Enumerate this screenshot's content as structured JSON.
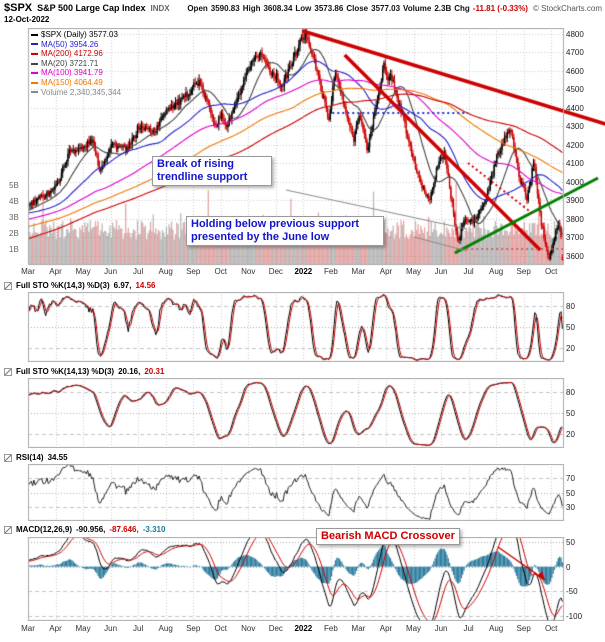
{
  "header": {
    "symbol": "$SPX",
    "name": "S&P 500 Large Cap Index",
    "exchange": "INDX",
    "copyright": "© StockCharts.com",
    "date": "12-Oct-2022",
    "quote_items": [
      {
        "label": "Open",
        "value": "3590.83",
        "color": "#111111"
      },
      {
        "label": "High",
        "value": "3608.34",
        "color": "#111111"
      },
      {
        "label": "Low",
        "value": "3573.86",
        "color": "#111111"
      },
      {
        "label": "Close",
        "value": "3577.03",
        "color": "#111111"
      },
      {
        "label": "Volume",
        "value": "2.3B",
        "color": "#111111"
      },
      {
        "label": "Chg",
        "value": "-11.81 (-0.33%)",
        "color": "#cc0000"
      }
    ]
  },
  "legend": {
    "items": [
      {
        "text": "$SPX (Daily) 3577.03",
        "color": "#000000",
        "icon": "candlestick-icon"
      },
      {
        "text": "MA(50) 3954.26",
        "color": "#2222cc",
        "icon": "line-icon"
      },
      {
        "text": "MA(200) 4172.96",
        "color": "#cc0000",
        "icon": "line-icon"
      },
      {
        "text": "MA(20) 3721.71",
        "color": "#444444",
        "icon": "line-icon"
      },
      {
        "text": "MA(100) 3941.79",
        "color": "#dd00cc",
        "icon": "line-icon"
      },
      {
        "text": "MA(150) 4064.49",
        "color": "#ee7700",
        "icon": "line-icon"
      },
      {
        "text": "Volume 2,340,345,344",
        "color": "#888888",
        "icon": "volume-icon"
      }
    ]
  },
  "annotations": {
    "trendline_break": "Break of rising trendline support",
    "june_low": "Holding below previous support presented by the June low",
    "macd_cross": "Bearish MACD Crossover"
  },
  "chart_data": {
    "type": "candlestick",
    "title": "$SPX daily candlesticks with MA(20/50/100/150/200), volume, Full Stochastics, RSI and MACD",
    "x_months": [
      "Mar",
      "Apr",
      "May",
      "Jun",
      "Jul",
      "Aug",
      "Sep",
      "Oct",
      "Nov",
      "Dec",
      "2022",
      "Feb",
      "Mar",
      "Apr",
      "May",
      "Jun",
      "Jul",
      "Aug",
      "Sep",
      "Oct"
    ],
    "bars_per_month": 21,
    "visible_bars": 408,
    "warmup_bars": 200,
    "price_axis": {
      "min": 3550,
      "max": 4830,
      "ticks": [
        4800,
        4700,
        4600,
        4500,
        4400,
        4300,
        4200,
        4100,
        4000,
        3900,
        3800,
        3700,
        3600
      ]
    },
    "volume_axis": {
      "ticks": [
        "5B",
        "4B",
        "3B",
        "2B",
        "1B"
      ],
      "billions_per_16px": 1
    },
    "price_keypoints": [
      [
        -10,
        3370
      ],
      [
        -8,
        3520
      ],
      [
        -6,
        3690
      ],
      [
        -4,
        3740
      ],
      [
        -2,
        3840
      ],
      [
        -1,
        3810
      ],
      [
        0,
        3870
      ],
      [
        0.5,
        3920
      ],
      [
        1,
        3973
      ],
      [
        1.5,
        4170
      ],
      [
        2,
        4181
      ],
      [
        2.3,
        4230
      ],
      [
        2.6,
        4060
      ],
      [
        3,
        4204
      ],
      [
        3.6,
        4170
      ],
      [
        4,
        4297
      ],
      [
        4.6,
        4270
      ],
      [
        5,
        4395
      ],
      [
        5.6,
        4440
      ],
      [
        6,
        4523
      ],
      [
        6.2,
        4537
      ],
      [
        6.8,
        4307
      ],
      [
        7,
        4357
      ],
      [
        7.2,
        4300
      ],
      [
        8,
        4605
      ],
      [
        8.4,
        4700
      ],
      [
        8.8,
        4594
      ],
      [
        9,
        4567
      ],
      [
        9.2,
        4513
      ],
      [
        9.9,
        4766
      ],
      [
        10.1,
        4797
      ],
      [
        10.5,
        4580
      ],
      [
        10.9,
        4330
      ],
      [
        11.05,
        4516
      ],
      [
        11.15,
        4590
      ],
      [
        11.5,
        4380
      ],
      [
        11.8,
        4226
      ],
      [
        12,
        4374
      ],
      [
        12.3,
        4170
      ],
      [
        12.9,
        4631
      ],
      [
        13.05,
        4530
      ],
      [
        13.15,
        4582
      ],
      [
        13.5,
        4400
      ],
      [
        13.95,
        4131
      ],
      [
        14.2,
        4000
      ],
      [
        14.55,
        3900
      ],
      [
        14.8,
        4058
      ],
      [
        15.0,
        4132
      ],
      [
        15.1,
        4160
      ],
      [
        15.35,
        3900
      ],
      [
        15.6,
        3666
      ],
      [
        15.8,
        3795
      ],
      [
        16.0,
        3785
      ],
      [
        16.2,
        3790
      ],
      [
        16.6,
        3900
      ],
      [
        17.0,
        4130
      ],
      [
        17.5,
        4305
      ],
      [
        17.8,
        4030
      ],
      [
        18.0,
        3955
      ],
      [
        18.1,
        3908
      ],
      [
        18.35,
        4110
      ],
      [
        18.6,
        3790
      ],
      [
        18.9,
        3585
      ],
      [
        19.05,
        3678
      ],
      [
        19.25,
        3790
      ],
      [
        19.43,
        3577
      ]
    ],
    "last_bar": {
      "open": 3590.83,
      "high": 3608.34,
      "low": 3573.86,
      "close": 3577.03,
      "volume_billions": 2.3
    },
    "moving_averages": [
      {
        "period": 20,
        "color": "#444444"
      },
      {
        "period": 50,
        "color": "#2222cc"
      },
      {
        "period": 100,
        "color": "#dd00cc"
      },
      {
        "period": 150,
        "color": "#ee7700"
      },
      {
        "period": 200,
        "color": "#cc0000"
      }
    ],
    "candle_up_color": "#000000",
    "candle_down_color": "#cc0000",
    "volume_up_color": "rgba(130,130,130,0.55)",
    "volume_down_color": "rgba(205,95,95,0.55)",
    "overlays": [
      {
        "name": "upper-falling-trendline",
        "color": "#cc0000",
        "width": 3.5,
        "from": [
          9.95,
          4815
        ],
        "to": [
          21.0,
          4310
        ]
      },
      {
        "name": "steep-falling-trendline",
        "color": "#cc0000",
        "width": 3.5,
        "from": [
          11.5,
          4684
        ],
        "to": [
          18.6,
          3631
        ]
      },
      {
        "name": "rising-support-trendline",
        "color": "#008000",
        "width": 3,
        "from": [
          15.5,
          3615
        ],
        "to": [
          20.7,
          4020
        ]
      },
      {
        "name": "support-level-dotted",
        "color": "#2233cc",
        "width": 2,
        "dash": [
          2,
          3
        ],
        "from": [
          11.05,
          4371
        ],
        "to": [
          15.98,
          4371
        ]
      },
      {
        "name": "falling-resistance-dotted",
        "color": "#cc0000",
        "width": 2,
        "dash": [
          2,
          3
        ],
        "from": [
          15.98,
          4101
        ],
        "to": [
          18.3,
          3831
        ]
      },
      {
        "name": "june-low-dotted",
        "color": "#cc4444",
        "width": 1.5,
        "dash": [
          2,
          3
        ],
        "from": [
          15.55,
          3636
        ],
        "to": [
          19.43,
          3636
        ]
      }
    ],
    "panels": [
      {
        "id": "sto1",
        "label": "Full STO %K(14,3) %D(3)",
        "values": [
          {
            "text": "6.97,",
            "color": "#000000"
          },
          {
            "text": "14.56",
            "color": "#cc0000"
          }
        ],
        "ticks": [
          80,
          50,
          20
        ],
        "range": [
          0,
          100
        ]
      },
      {
        "id": "sto2",
        "label": "Full STO %K(14,13) %D(3)",
        "values": [
          {
            "text": "20.16,",
            "color": "#000000"
          },
          {
            "text": "20.31",
            "color": "#cc0000"
          }
        ],
        "ticks": [
          80,
          50,
          20
        ],
        "range": [
          0,
          100
        ]
      },
      {
        "id": "rsi",
        "label": "RSI(14)",
        "values": [
          {
            "text": "34.55",
            "color": "#000000"
          }
        ],
        "ticks": [
          70,
          50,
          30
        ],
        "range": [
          10,
          90
        ]
      },
      {
        "id": "macd",
        "label": "MACD(12,26,9)",
        "values": [
          {
            "text": "-90.956,",
            "color": "#000000"
          },
          {
            "text": "-87.646,",
            "color": "#cc0000"
          },
          {
            "text": "-3.310",
            "color": "#1f7a99"
          }
        ],
        "ticks": [
          50,
          0,
          -50,
          -100
        ],
        "range": [
          -110,
          60
        ],
        "histogram_color": "#2e7d9e"
      }
    ],
    "callouts": {
      "main": [
        {
          "from": [
            286,
            190
          ],
          "to": [
            467,
            229
          ]
        },
        {
          "from": [
            414,
            237
          ],
          "to": [
            467,
            251
          ]
        }
      ],
      "macd": [
        {
          "from": [
            498,
            547
          ],
          "to": [
            545,
            580
          ],
          "color": "#cc0000",
          "arrow": true
        }
      ]
    }
  }
}
